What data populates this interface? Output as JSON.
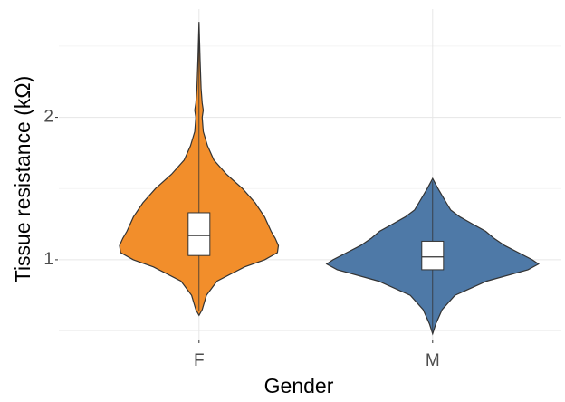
{
  "chart_data": {
    "type": "violin",
    "x_label": "Gender",
    "y_label": "Tissue resistance (kΩ)",
    "categories": [
      "F",
      "M"
    ],
    "ylim": [
      0.44,
      2.76
    ],
    "yticks": [
      1,
      2
    ],
    "minor_yticks": [
      0.5,
      1.5,
      2.5
    ],
    "grid": true,
    "series": [
      {
        "name": "F",
        "color": "#f28e2b",
        "violin_y": [
          0.61,
          0.65,
          0.75,
          0.85,
          0.95,
          1.0,
          1.05,
          1.1,
          1.15,
          1.2,
          1.3,
          1.4,
          1.5,
          1.6,
          1.7,
          1.8,
          1.9,
          2.0,
          2.05,
          2.1,
          2.2,
          2.4,
          2.67
        ],
        "density": [
          0,
          0.03,
          0.07,
          0.17,
          0.43,
          0.62,
          0.74,
          0.75,
          0.72,
          0.68,
          0.62,
          0.53,
          0.41,
          0.26,
          0.14,
          0.08,
          0.04,
          0.03,
          0.04,
          0.03,
          0.02,
          0.01,
          0
        ],
        "whisker_low": 0.64,
        "q1": 1.03,
        "median": 1.17,
        "q3": 1.33,
        "whisker_high": 2.6
      },
      {
        "name": "M",
        "color": "#4e79a7",
        "violin_y": [
          0.48,
          0.55,
          0.65,
          0.75,
          0.85,
          0.93,
          0.97,
          1.0,
          1.05,
          1.1,
          1.15,
          1.2,
          1.25,
          1.3,
          1.35,
          1.4,
          1.45,
          1.5,
          1.57
        ],
        "density": [
          0,
          0.03,
          0.09,
          0.21,
          0.51,
          0.9,
          1,
          0.94,
          0.81,
          0.68,
          0.58,
          0.5,
          0.38,
          0.26,
          0.17,
          0.13,
          0.09,
          0.05,
          0
        ],
        "whisker_low": 0.5,
        "q1": 0.93,
        "median": 1.02,
        "q3": 1.13,
        "whisker_high": 1.55
      }
    ]
  }
}
